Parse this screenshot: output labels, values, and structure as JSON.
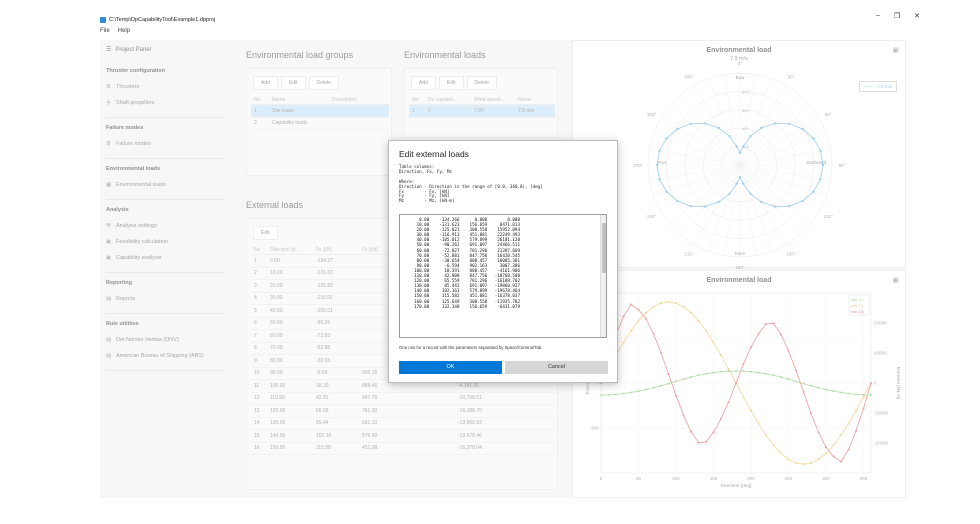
{
  "window": {
    "title": "C:\\Temp\\DpCapabilityTool\\Example1.dpproj",
    "minimize": "–",
    "maximize": "❐",
    "close": "✕"
  },
  "menu": [
    "File",
    "Help"
  ],
  "left_panel": {
    "header": "Project Panel",
    "sections": [
      {
        "title": "Thruster configuration",
        "items": [
          {
            "label": "Thrusters",
            "icon": "thruster-icon",
            "glyph": "⚙"
          },
          {
            "label": "Shaft propellers",
            "icon": "shaft-icon",
            "glyph": "╪"
          }
        ]
      },
      {
        "title": "Failure modes",
        "items": [
          {
            "label": "Failure modes",
            "icon": "failure-icon",
            "glyph": "⚙"
          }
        ]
      },
      {
        "title": "Environmental loads",
        "items": [
          {
            "label": "Environmental loads",
            "icon": "table-icon",
            "glyph": "▦"
          }
        ]
      },
      {
        "title": "Analysis",
        "items": [
          {
            "label": "Analysis settings",
            "icon": "settings-icon",
            "glyph": "⚒"
          },
          {
            "label": "Feasibility calculation",
            "icon": "calc-icon",
            "glyph": "◉"
          },
          {
            "label": "Capability analysis",
            "icon": "capability-icon",
            "glyph": "◉"
          }
        ]
      },
      {
        "title": "Reporting",
        "items": [
          {
            "label": "Reports",
            "icon": "report-icon",
            "glyph": "▤"
          }
        ]
      },
      {
        "title": "Rule utilities",
        "items": [
          {
            "label": "Det Norske Veritas (DNV)",
            "icon": "doc-icon",
            "glyph": "▤"
          },
          {
            "label": "American Bureau of Shipping (ABS)",
            "icon": "doc-icon",
            "glyph": "▤"
          }
        ]
      }
    ]
  },
  "env_groups": {
    "title": "Environmental load groups",
    "buttons": [
      "Add",
      "Edit",
      "Delete"
    ],
    "columns": [
      "No",
      "Name",
      "Description"
    ],
    "rows": [
      [
        "1",
        "Site loads",
        ""
      ],
      [
        "2",
        "Capability loads",
        ""
      ]
    ]
  },
  "env_loads": {
    "title": "Environmental loads",
    "buttons": [
      "Add",
      "Edit",
      "Delete"
    ],
    "columns": [
      "No",
      "Dir capabili...",
      "Wind speed...",
      "Name"
    ],
    "rows": [
      [
        "1",
        "0",
        "7.90",
        "7.9 m/s"
      ]
    ]
  },
  "ext_loads": {
    "title": "External loads",
    "buttons": [
      "Edit"
    ],
    "columns": [
      "No",
      "Direction [d...",
      "Fx [kN]",
      "Fy [kN]",
      "Mz [kN·m]"
    ],
    "rows": [
      [
        "1",
        "0.00",
        "-134.27",
        "",
        ""
      ],
      [
        "2",
        "10.00",
        "-131.62",
        "",
        ""
      ],
      [
        "3",
        "20.00",
        "-125.82",
        "",
        ""
      ],
      [
        "4",
        "30.00",
        "-116.91",
        "",
        ""
      ],
      [
        "5",
        "40.00",
        "-105.01",
        "",
        ""
      ],
      [
        "6",
        "50.00",
        "-90.26",
        "",
        ""
      ],
      [
        "7",
        "60.00",
        "-72.83",
        "",
        ""
      ],
      [
        "8",
        "70.00",
        "-52.88",
        "",
        ""
      ],
      [
        "9",
        "80.00",
        "-30.65",
        "",
        ""
      ],
      [
        "10",
        "90.00",
        "-6.59",
        "902.16",
        "3,007.39"
      ],
      [
        "11",
        "100.00",
        "18.39",
        "888.46",
        "-4,161.91"
      ],
      [
        "12",
        "110.00",
        "42.91",
        "847.76",
        "-10,768.51"
      ],
      [
        "13",
        "120.00",
        "65.56",
        "781.30",
        "-16,188.70"
      ],
      [
        "14",
        "130.00",
        "85.44",
        "691.10",
        "-19,860.93"
      ],
      [
        "15",
        "140.00",
        "102.16",
        "579.90",
        "-19,678.46"
      ],
      [
        "16",
        "150.00",
        "115.58",
        "451.08",
        "-16,378.04"
      ]
    ]
  },
  "polar_chart": {
    "title": "Environmental load",
    "subtitle": "7.9 m/s",
    "legend": "7.9 m/s",
    "bow_label": "Bow",
    "stern_label": "Stern",
    "port_label": "Port",
    "starboard_label": "Starboard",
    "angles": [
      "0°",
      "30°",
      "60°",
      "90°",
      "120°",
      "150°",
      "180°",
      "210°",
      "240°",
      "270°",
      "300°",
      "330°"
    ],
    "rings": [
      "200",
      "400",
      "600",
      "800"
    ],
    "color": "#6db4e8"
  },
  "chart_data": {
    "type": "line",
    "title": "Environmental load",
    "xlabel": "Direction [deg]",
    "ylabel_left": "Force [kN]",
    "ylabel_right": "Moment [kN·m]",
    "xlim": [
      0,
      360
    ],
    "x_ticks": [
      0,
      50,
      100,
      150,
      200,
      250,
      300,
      350
    ],
    "y_left_ticks": [
      -500,
      0,
      500
    ],
    "y_right_ticks": [
      -20000,
      -10000,
      0,
      10000,
      20000
    ],
    "legend_position": "top-right",
    "grid": true,
    "x": [
      0,
      10,
      20,
      30,
      40,
      50,
      60,
      70,
      80,
      90,
      100,
      110,
      120,
      130,
      140,
      150,
      160,
      170,
      180,
      190,
      200,
      210,
      220,
      230,
      240,
      250,
      260,
      270,
      280,
      290,
      300,
      310,
      320,
      330,
      340,
      350,
      360
    ],
    "series": [
      {
        "name": "Fx",
        "axis": "left",
        "color": "#8fc77a",
        "values": [
          -134.27,
          -131.62,
          -125.82,
          -116.91,
          -105.01,
          -90.26,
          -72.83,
          -52.88,
          -30.65,
          -6.59,
          18.39,
          42.91,
          65.56,
          85.44,
          102.16,
          115.58,
          125.65,
          132.35,
          134.27,
          132.35,
          125.65,
          115.58,
          102.16,
          85.44,
          65.56,
          42.91,
          18.39,
          -6.59,
          -30.65,
          -52.88,
          -72.83,
          -90.26,
          -105.01,
          -116.91,
          -125.82,
          -131.62,
          -134.27
        ]
      },
      {
        "name": "Fy",
        "axis": "left",
        "color": "#f0c060",
        "values": [
          0,
          156.66,
          308.56,
          451.08,
          579.9,
          691.1,
          781.3,
          847.76,
          888.46,
          902.16,
          888.46,
          847.76,
          781.3,
          691.1,
          579.9,
          451.08,
          308.56,
          156.66,
          0,
          -156.66,
          -308.56,
          -451.08,
          -579.9,
          -691.1,
          -781.3,
          -847.76,
          -888.46,
          -902.16,
          -888.46,
          -847.76,
          -781.3,
          -691.1,
          -579.9,
          -451.08,
          -308.56,
          -156.66,
          0
        ]
      },
      {
        "name": "Mz",
        "axis": "right",
        "color": "#e86a6a",
        "values": [
          0,
          8471.01,
          15952.09,
          22249.49,
          26181.12,
          24466.51,
          21397.67,
          16420.55,
          10085.3,
          3007.39,
          -4161.91,
          -10768.51,
          -16188.7,
          -19860.93,
          -19678.46,
          -16378.04,
          -11935.78,
          -6431.08,
          0,
          6431.08,
          11935.78,
          16378.04,
          19678.46,
          19860.93,
          16188.7,
          10768.51,
          4161.91,
          -3007.39,
          -10085.3,
          -16420.55,
          -21397.67,
          -24466.51,
          -26181.12,
          -22249.49,
          -15952.09,
          -8471.01,
          0
        ]
      }
    ]
  },
  "dialog": {
    "title": "Edit external loads",
    "help": "Table columns:\nDirection, Fx, Fy, Mz\n\nWhere:\nDirection - Direction in the range of [0.0, 360.0), [deg]\nFx        - Fx, [kN]\nFy        - Fy, [kN]\nMz        - Mz, [kN·m]",
    "data_text": "      0.00    -134.266      0.000        0.000\n     10.00    -131.623    156.659     8471.013\n     20.00    -125.821    308.558    15952.094\n     30.00    -116.913    451.081    22249.493\n     40.00    -105.012    579.899    26181.120\n     50.00     -90.262    691.097    24466.511\n     60.00     -72.827    781.296    21397.669\n     70.00     -52.881    847.756    16420.545\n     80.00     -30.654    888.457    10085.301\n     90.00      -6.594    902.163     3007.386\n    100.00      18.391    888.457    -4161.906\n    110.00      42.908    847.756   -10768.508\n    120.00      65.559    781.296   -16188.702\n    130.00      85.443    691.097   -19860.927\n    140.00     102.163    579.899   -19678.464\n    150.00     115.582    451.081   -16378.037\n    160.00     125.649    308.558   -11935.782\n    170.00     132.348    156.659    -6431.079",
    "note": "One row for a record with the parameters separated by Space/Comma/Tab.",
    "ok": "OK",
    "cancel": "Cancel"
  }
}
